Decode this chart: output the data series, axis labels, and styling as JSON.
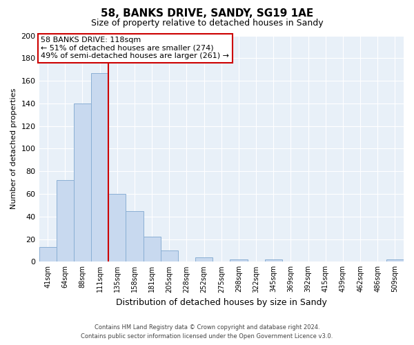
{
  "title": "58, BANKS DRIVE, SANDY, SG19 1AE",
  "subtitle": "Size of property relative to detached houses in Sandy",
  "xlabel": "Distribution of detached houses by size in Sandy",
  "ylabel": "Number of detached properties",
  "categories": [
    "41sqm",
    "64sqm",
    "88sqm",
    "111sqm",
    "135sqm",
    "158sqm",
    "181sqm",
    "205sqm",
    "228sqm",
    "252sqm",
    "275sqm",
    "298sqm",
    "322sqm",
    "345sqm",
    "369sqm",
    "392sqm",
    "415sqm",
    "439sqm",
    "462sqm",
    "486sqm",
    "509sqm"
  ],
  "values": [
    13,
    72,
    140,
    167,
    60,
    45,
    22,
    10,
    0,
    4,
    0,
    2,
    0,
    2,
    0,
    0,
    0,
    0,
    0,
    0,
    2
  ],
  "bar_color": "#c8d9ef",
  "bar_edge_color": "#8aafd4",
  "vline_x": 4.0,
  "vline_color": "#cc0000",
  "ylim": [
    0,
    200
  ],
  "yticks": [
    0,
    20,
    40,
    60,
    80,
    100,
    120,
    140,
    160,
    180,
    200
  ],
  "annotation_title": "58 BANKS DRIVE: 118sqm",
  "annotation_line1": "← 51% of detached houses are smaller (274)",
  "annotation_line2": "49% of semi-detached houses are larger (261) →",
  "annotation_box_color": "#ffffff",
  "annotation_box_edge": "#cc0000",
  "footer_line1": "Contains HM Land Registry data © Crown copyright and database right 2024.",
  "footer_line2": "Contains public sector information licensed under the Open Government Licence v3.0.",
  "background_color": "#ffffff",
  "plot_bg_color": "#e8f0f8",
  "grid_color": "#ffffff"
}
